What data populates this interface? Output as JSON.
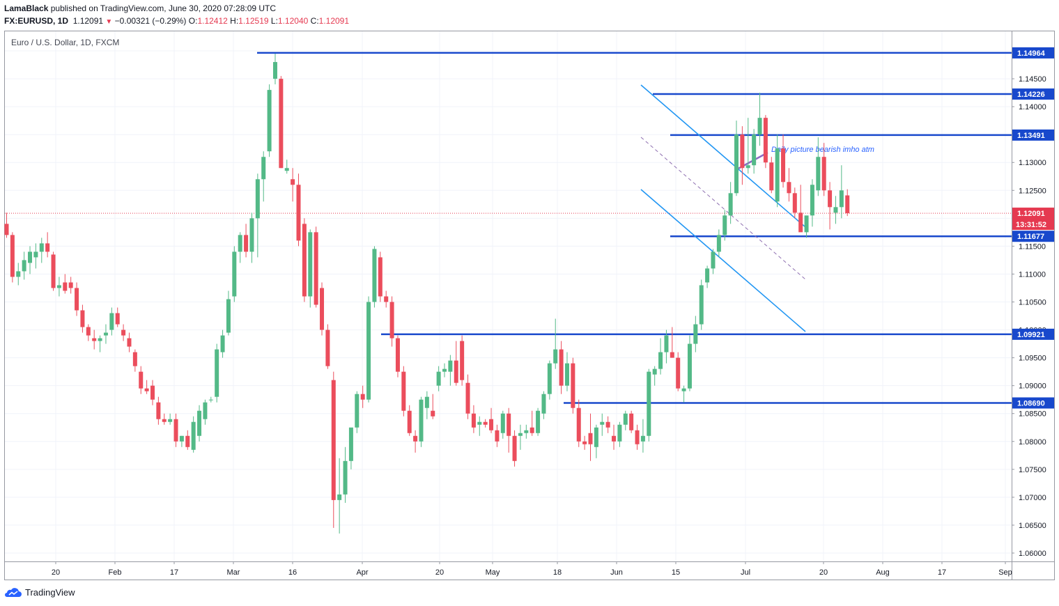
{
  "header": {
    "author": "LamaBlack",
    "published": "published on TradingView.com, June 30, 2020 07:28:09 UTC",
    "symbol": "FX:EURUSD, 1D",
    "last": "1.12091",
    "change": "−0.00321 (−0.29%)",
    "o_label": "O:",
    "o": "1.12412",
    "h_label": "H:",
    "h": "1.12519",
    "l_label": "L:",
    "l": "1.12040",
    "c_label": "C:",
    "c": "1.12091"
  },
  "brand": {
    "name": "TradingView"
  },
  "colors": {
    "up": "#53b987",
    "down": "#eb4d5c",
    "level": "#1848cc",
    "channel": "#2196f3",
    "dashed": "#8e6fb0",
    "note": "#2962ff",
    "price_tag": "#e53950"
  },
  "chart_data": {
    "type": "candlestick",
    "title": "Euro / U.S. Dollar, 1D, FXCM",
    "ylim": [
      1.0585,
      1.1535
    ],
    "y_ticks": [
      "1.15000",
      "1.14500",
      "1.14000",
      "1.13500",
      "1.13000",
      "1.12500",
      "1.12000",
      "1.11500",
      "1.11000",
      "1.10500",
      "1.10000",
      "1.09500",
      "1.09000",
      "1.08500",
      "1.08000",
      "1.07500",
      "1.07000",
      "1.06500",
      "1.06000"
    ],
    "x_ticks": [
      "20",
      "Feb",
      "17",
      "Mar",
      "16",
      "Apr",
      "20",
      "May",
      "18",
      "Jun",
      "15",
      "Jul",
      "20",
      "Aug",
      "17",
      "Sep"
    ],
    "candles": [
      [
        1.119,
        1.121,
        1.1165,
        1.117
      ],
      [
        1.117,
        1.1175,
        1.1085,
        1.1095
      ],
      [
        1.1095,
        1.112,
        1.108,
        1.1105
      ],
      [
        1.1105,
        1.114,
        1.109,
        1.1125
      ],
      [
        1.112,
        1.115,
        1.11,
        1.114
      ],
      [
        1.113,
        1.1155,
        1.111,
        1.114
      ],
      [
        1.114,
        1.1165,
        1.112,
        1.1155
      ],
      [
        1.1155,
        1.1175,
        1.113,
        1.114
      ],
      [
        1.1135,
        1.114,
        1.107,
        1.1075
      ],
      [
        1.1075,
        1.1095,
        1.106,
        1.108
      ],
      [
        1.1085,
        1.11,
        1.1065,
        1.107
      ],
      [
        1.1085,
        1.1095,
        1.1065,
        1.1075
      ],
      [
        1.1075,
        1.1085,
        1.1025,
        1.1035
      ],
      [
        1.1035,
        1.1045,
        1.0995,
        1.1005
      ],
      [
        1.1005,
        1.101,
        1.098,
        1.099
      ],
      [
        1.0985,
        1.1,
        1.0965,
        1.098
      ],
      [
        1.098,
        1.099,
        1.096,
        1.0985
      ],
      [
        1.099,
        1.101,
        1.0975,
        1.0995
      ],
      [
        1.1,
        1.104,
        1.099,
        1.103
      ],
      [
        1.103,
        1.104,
        1.1005,
        1.101
      ],
      [
        1.1,
        1.101,
        1.098,
        1.099
      ],
      [
        1.0985,
        1.0995,
        1.096,
        1.097
      ],
      [
        1.096,
        1.0965,
        1.0925,
        1.0935
      ],
      [
        1.0925,
        1.0935,
        1.0885,
        1.0895
      ],
      [
        1.0895,
        1.091,
        1.0885,
        1.089
      ],
      [
        1.09,
        1.091,
        1.0865,
        1.0875
      ],
      [
        1.087,
        1.088,
        1.083,
        1.084
      ],
      [
        1.084,
        1.085,
        1.083,
        1.0835
      ],
      [
        1.0835,
        1.085,
        1.083,
        1.084
      ],
      [
        1.084,
        1.085,
        1.079,
        1.08
      ],
      [
        1.08,
        1.081,
        1.079,
        1.081
      ],
      [
        1.081,
        1.082,
        1.0785,
        1.079
      ],
      [
        1.0785,
        1.0845,
        1.078,
        1.0835
      ],
      [
        1.081,
        1.0865,
        1.08,
        1.0855
      ],
      [
        1.084,
        1.0875,
        1.083,
        1.087
      ],
      [
        1.0875,
        1.088,
        1.087,
        1.0875
      ],
      [
        1.088,
        1.0975,
        1.087,
        1.0965
      ],
      [
        1.096,
        1.1,
        1.095,
        1.099
      ],
      [
        1.0995,
        1.107,
        1.099,
        1.1055
      ],
      [
        1.106,
        1.115,
        1.105,
        1.114
      ],
      [
        1.114,
        1.1175,
        1.112,
        1.117
      ],
      [
        1.117,
        1.119,
        1.113,
        1.114
      ],
      [
        1.114,
        1.121,
        1.112,
        1.12
      ],
      [
        1.12,
        1.128,
        1.113,
        1.127
      ],
      [
        1.127,
        1.132,
        1.123,
        1.131
      ],
      [
        1.132,
        1.144,
        1.131,
        1.143
      ],
      [
        1.145,
        1.1495,
        1.144,
        1.148
      ],
      [
        1.145,
        1.1455,
        1.129,
        1.129
      ],
      [
        1.1285,
        1.1305,
        1.128,
        1.129
      ],
      [
        1.127,
        1.129,
        1.123,
        1.126
      ],
      [
        1.126,
        1.128,
        1.115,
        1.116
      ],
      [
        1.119,
        1.12,
        1.105,
        1.106
      ],
      [
        1.106,
        1.118,
        1.104,
        1.1175
      ],
      [
        1.1175,
        1.1185,
        1.104,
        1.1045
      ],
      [
        1.1075,
        1.1085,
        1.099,
        1.1
      ],
      [
        1.1,
        1.101,
        1.093,
        1.0935
      ],
      [
        1.091,
        1.0925,
        1.0645,
        1.0695
      ],
      [
        1.0695,
        1.077,
        1.0635,
        1.0705
      ],
      [
        1.0705,
        1.079,
        1.069,
        1.0765
      ],
      [
        1.0765,
        1.082,
        1.075,
        1.0825
      ],
      [
        1.0825,
        1.089,
        1.0815,
        1.0885
      ],
      [
        1.0885,
        1.09,
        1.086,
        1.0875
      ],
      [
        1.0875,
        1.106,
        1.087,
        1.105
      ],
      [
        1.105,
        1.115,
        1.104,
        1.1145
      ],
      [
        1.113,
        1.114,
        1.105,
        1.106
      ],
      [
        1.106,
        1.107,
        1.104,
        1.105
      ],
      [
        1.105,
        1.106,
        1.097,
        1.0985
      ],
      [
        1.0985,
        1.099,
        1.0915,
        1.0925
      ],
      [
        1.0925,
        1.0935,
        1.0845,
        1.0855
      ],
      [
        1.0855,
        1.0865,
        1.081,
        1.0815
      ],
      [
        1.081,
        1.082,
        1.078,
        1.08
      ],
      [
        1.08,
        1.088,
        1.079,
        1.0875
      ],
      [
        1.086,
        1.089,
        1.084,
        1.088
      ],
      [
        1.0855,
        1.0885,
        1.084,
        1.0845
      ],
      [
        1.09,
        1.0935,
        1.089,
        1.0925
      ],
      [
        1.0925,
        1.094,
        1.0915,
        1.093
      ],
      [
        1.0925,
        1.0955,
        1.09,
        1.0945
      ],
      [
        1.0945,
        1.098,
        1.09,
        1.0905
      ],
      [
        1.098,
        1.099,
        1.09,
        1.091
      ],
      [
        1.0905,
        1.092,
        1.084,
        1.085
      ],
      [
        1.085,
        1.0865,
        1.0815,
        1.0825
      ],
      [
        1.083,
        1.0845,
        1.081,
        1.0835
      ],
      [
        1.0835,
        1.084,
        1.0825,
        1.083
      ],
      [
        1.084,
        1.086,
        1.0815,
        1.082
      ],
      [
        1.082,
        1.083,
        1.079,
        1.08
      ],
      [
        1.0815,
        1.0855,
        1.0805,
        1.085
      ],
      [
        1.085,
        1.086,
        1.078,
        1.081
      ],
      [
        1.081,
        1.082,
        1.0755,
        1.0765
      ],
      [
        1.081,
        1.083,
        1.0785,
        1.0815
      ],
      [
        1.0815,
        1.083,
        1.0805,
        1.082
      ],
      [
        1.0825,
        1.0855,
        1.081,
        1.0815
      ],
      [
        1.0815,
        1.086,
        1.081,
        1.0855
      ],
      [
        1.085,
        1.089,
        1.084,
        1.0885
      ],
      [
        1.0885,
        1.0945,
        1.0875,
        1.094
      ],
      [
        1.094,
        1.102,
        1.093,
        1.0965
      ],
      [
        1.0965,
        1.098,
        1.0885,
        1.09
      ],
      [
        1.09,
        1.096,
        1.089,
        1.094
      ],
      [
        1.094,
        1.095,
        1.085,
        1.086
      ],
      [
        1.086,
        1.0875,
        1.079,
        1.08
      ],
      [
        1.08,
        1.081,
        1.0785,
        1.0795
      ],
      [
        1.0815,
        1.085,
        1.0765,
        1.0795
      ],
      [
        1.079,
        1.083,
        1.077,
        1.0825
      ],
      [
        1.083,
        1.085,
        1.081,
        1.0835
      ],
      [
        1.0835,
        1.0845,
        1.0815,
        1.0825
      ],
      [
        1.081,
        1.083,
        1.0785,
        1.08
      ],
      [
        1.08,
        1.0835,
        1.079,
        1.083
      ],
      [
        1.083,
        1.0855,
        1.082,
        1.085
      ],
      [
        1.085,
        1.0855,
        1.0815,
        1.082
      ],
      [
        1.082,
        1.083,
        1.0785,
        1.0795
      ],
      [
        1.08,
        1.084,
        1.078,
        1.081
      ],
      [
        1.081,
        1.093,
        1.08,
        1.0925
      ],
      [
        1.092,
        1.0935,
        1.09,
        1.093
      ],
      [
        1.093,
        1.0985,
        1.092,
        1.096
      ],
      [
        1.096,
        1.1,
        1.094,
        1.099
      ],
      [
        1.096,
        1.1005,
        1.095,
        1.095
      ],
      [
        1.095,
        1.096,
        1.089,
        1.0895
      ],
      [
        1.089,
        1.09,
        1.087,
        1.0895
      ],
      [
        1.0895,
        1.099,
        1.089,
        1.0975
      ],
      [
        1.0975,
        1.1025,
        1.096,
        1.101
      ],
      [
        1.101,
        1.109,
        1.1,
        1.108
      ],
      [
        1.1085,
        1.1115,
        1.1075,
        1.111
      ],
      [
        1.111,
        1.1145,
        1.11,
        1.114
      ],
      [
        1.114,
        1.118,
        1.113,
        1.117
      ],
      [
        1.117,
        1.1215,
        1.116,
        1.1205
      ],
      [
        1.1205,
        1.1265,
        1.119,
        1.1245
      ],
      [
        1.1245,
        1.1375,
        1.124,
        1.135
      ],
      [
        1.135,
        1.1365,
        1.126,
        1.129
      ],
      [
        1.129,
        1.138,
        1.128,
        1.1295
      ],
      [
        1.1295,
        1.136,
        1.128,
        1.135
      ],
      [
        1.135,
        1.1425,
        1.133,
        1.138
      ],
      [
        1.138,
        1.1385,
        1.129,
        1.13
      ],
      [
        1.13,
        1.131,
        1.1245,
        1.125
      ],
      [
        1.123,
        1.135,
        1.122,
        1.1325
      ],
      [
        1.1325,
        1.135,
        1.1255,
        1.1265
      ],
      [
        1.1265,
        1.129,
        1.123,
        1.1245
      ],
      [
        1.1245,
        1.1255,
        1.12,
        1.121
      ],
      [
        1.121,
        1.126,
        1.118,
        1.1175
      ],
      [
        1.1175,
        1.12,
        1.1165,
        1.1205
      ],
      [
        1.1205,
        1.127,
        1.1185,
        1.126
      ],
      [
        1.125,
        1.1345,
        1.124,
        1.131
      ],
      [
        1.131,
        1.1335,
        1.124,
        1.125
      ],
      [
        1.125,
        1.1265,
        1.118,
        1.122
      ],
      [
        1.121,
        1.124,
        1.119,
        1.122
      ],
      [
        1.122,
        1.1295,
        1.12,
        1.125
      ],
      [
        1.1241,
        1.1252,
        1.1204,
        1.1209
      ]
    ],
    "levels": [
      "1.14964",
      "1.14226",
      "1.13491",
      "1.11677",
      "1.09921",
      "1.08690"
    ],
    "price_label": "1.12091",
    "countdown": "13:31:52",
    "annotation": "Daily picture bearish imho atm"
  }
}
